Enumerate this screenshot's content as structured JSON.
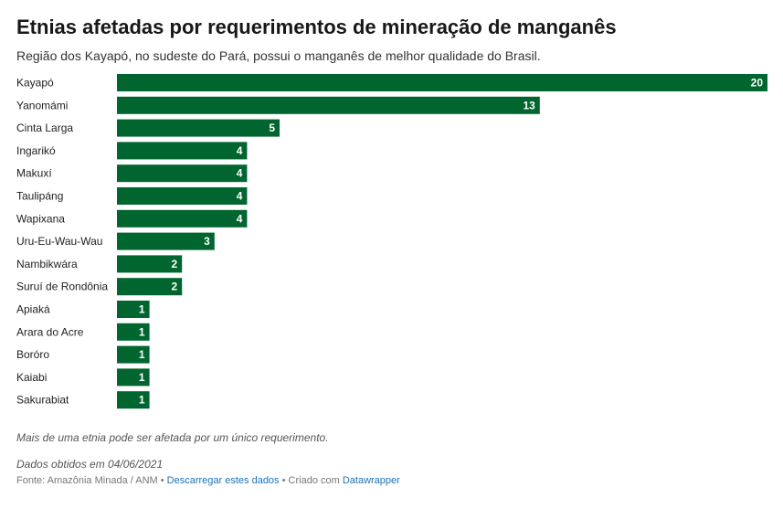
{
  "title": "Etnias afetadas por requerimentos de mineração de manganês",
  "subtitle": "Região dos Kayapó, no sudeste do Pará, possui o manganês de melhor qualidade do Brasil.",
  "note": "Mais de uma etnia pode ser afetada por um único requerimento.",
  "date_note": "Dados obtidos em 04/06/2021",
  "footer": {
    "source": "Fonte: Amazônia Minada / ANM",
    "separator": " • ",
    "download_link": "Descarregar estes dados",
    "created_with": "Criado com",
    "tool_link": "Datawrapper"
  },
  "colors": {
    "bar": "#00652e",
    "value_text": "#ffffff"
  },
  "chart_data": {
    "type": "bar",
    "orientation": "horizontal",
    "title": "Etnias afetadas por requerimentos de mineração de manganês",
    "xlim": [
      0,
      20
    ],
    "grid": false,
    "categories": [
      "Kayapó",
      "Yanomámi",
      "Cinta Larga",
      "Ingarikó",
      "Makuxí",
      "Taulipáng",
      "Wapixana",
      "Uru-Eu-Wau-Wau",
      "Nambikwára",
      "Suruí de Rondônia",
      "Apiaká",
      "Arara do Acre",
      "Boróro",
      "Kaiabi",
      "Sakurabiat"
    ],
    "values": [
      20,
      13,
      5,
      4,
      4,
      4,
      4,
      3,
      2,
      2,
      1,
      1,
      1,
      1,
      1
    ]
  }
}
